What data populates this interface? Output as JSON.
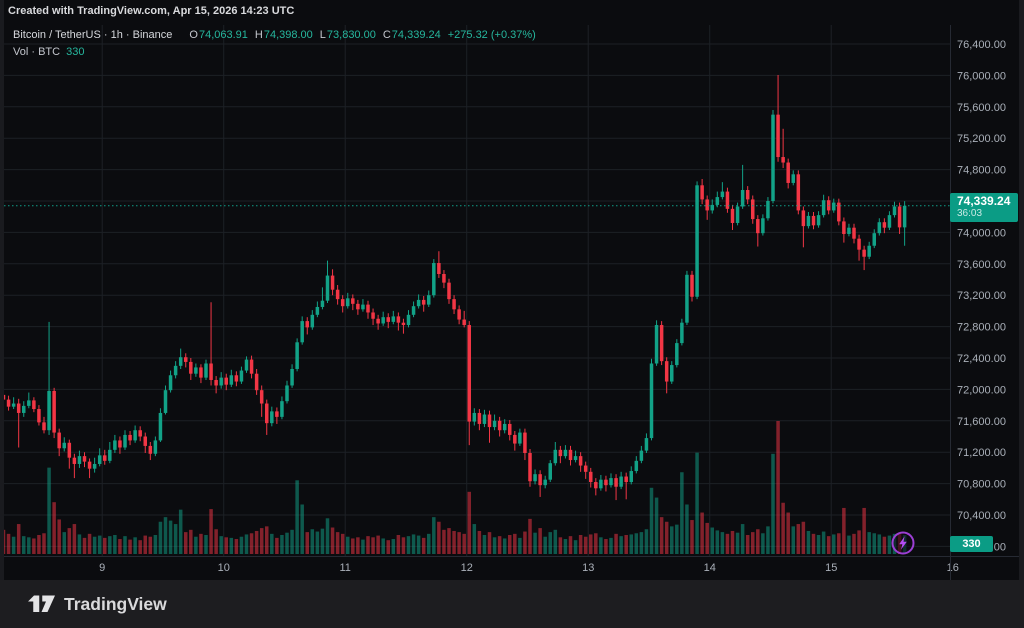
{
  "header": {
    "created_line": "Created with TradingView.com, Apr 15, 2026 14:23 UTC"
  },
  "legend": {
    "symbol_line": "Bitcoin / TetherUS · 1h · Binance",
    "o_label": "O",
    "o_value": "74,063.91",
    "h_label": "H",
    "h_value": "74,398.00",
    "l_label": "L",
    "l_value": "73,830.00",
    "c_label": "C",
    "c_value": "74,339.24",
    "change": "+275.32 (+0.37%)",
    "vol_label": "Vol · BTC",
    "vol_value": "330"
  },
  "price_badge": {
    "price": "74,339.24",
    "countdown": "36:03"
  },
  "volume_badge": {
    "value": "330"
  },
  "footer": {
    "brand": "TradingView"
  },
  "colors": {
    "up": "#12a287",
    "down": "#f23645",
    "accent_teal": "#0b9c85",
    "background": "#0b0c0f",
    "grid": "#1d2026",
    "axis_text": "#aab0b9",
    "legend_value": "#26b79e",
    "boost_purple": "#b44cf5"
  },
  "chart_data": {
    "type": "candlestick",
    "title": "Bitcoin / TetherUS · 1h · Binance",
    "interval": "1h",
    "legend_ohlc": {
      "open": 74063.91,
      "high": 74398.0,
      "low": 73830.0,
      "close": 74339.24,
      "change": 275.32,
      "change_pct": 0.37
    },
    "current_price": {
      "value": 74339.24,
      "countdown": "36:03"
    },
    "price_axis": {
      "max_tick": 76400,
      "min_tick": 70000,
      "tick_step": 400,
      "ticks": [
        76400,
        76000,
        75600,
        75200,
        74800,
        74400,
        74000,
        73600,
        73200,
        72800,
        72400,
        72000,
        71600,
        71200,
        70800,
        70400,
        70000
      ]
    },
    "time_axis": {
      "ticks": [
        {
          "label": "9",
          "index": 20
        },
        {
          "label": "10",
          "index": 44
        },
        {
          "label": "11",
          "index": 68
        },
        {
          "label": "12",
          "index": 92
        },
        {
          "label": "13",
          "index": 116
        },
        {
          "label": "14",
          "index": 140
        },
        {
          "label": "15",
          "index": 164
        },
        {
          "label": "16",
          "index": 188
        }
      ]
    },
    "volume_axis": {
      "max_volume": 2310,
      "last_volume": 330,
      "unit": "BTC"
    },
    "candles_format": [
      "open",
      "high",
      "low",
      "close",
      "volume"
    ],
    "candles": [
      [
        71930,
        71990,
        71820,
        71870,
        420
      ],
      [
        71870,
        71920,
        71730,
        71780,
        350
      ],
      [
        71780,
        71900,
        71750,
        71820,
        300
      ],
      [
        71820,
        71880,
        71260,
        71700,
        520
      ],
      [
        71700,
        71850,
        71650,
        71790,
        310
      ],
      [
        71790,
        71960,
        71760,
        71860,
        290
      ],
      [
        71860,
        71900,
        71710,
        71750,
        270
      ],
      [
        71750,
        71800,
        71540,
        71580,
        330
      ],
      [
        71580,
        71650,
        71440,
        71480,
        360
      ],
      [
        71480,
        72860,
        71420,
        71980,
        1500
      ],
      [
        71980,
        72020,
        71380,
        71450,
        900
      ],
      [
        71450,
        71500,
        71150,
        71250,
        600
      ],
      [
        71250,
        71390,
        71210,
        71320,
        380
      ],
      [
        71320,
        71360,
        70990,
        71130,
        450
      ],
      [
        71130,
        71180,
        70870,
        71050,
        520
      ],
      [
        71050,
        71220,
        71000,
        71150,
        340
      ],
      [
        71150,
        71200,
        71010,
        71080,
        280
      ],
      [
        71080,
        71120,
        70870,
        70990,
        350
      ],
      [
        70990,
        71130,
        70940,
        71050,
        300
      ],
      [
        71050,
        71250,
        71020,
        71160,
        320
      ],
      [
        71160,
        71230,
        71040,
        71090,
        280
      ],
      [
        71090,
        71330,
        71060,
        71230,
        310
      ],
      [
        71230,
        71420,
        71190,
        71350,
        330
      ],
      [
        71350,
        71400,
        71180,
        71260,
        260
      ],
      [
        71260,
        71480,
        71230,
        71420,
        310
      ],
      [
        71420,
        71470,
        71290,
        71350,
        250
      ],
      [
        71350,
        71540,
        71320,
        71480,
        290
      ],
      [
        71480,
        71530,
        71340,
        71400,
        240
      ],
      [
        71400,
        71450,
        71190,
        71280,
        320
      ],
      [
        71280,
        71330,
        71100,
        71180,
        300
      ],
      [
        71180,
        71400,
        71150,
        71350,
        330
      ],
      [
        71350,
        71760,
        71330,
        71700,
        560
      ],
      [
        71700,
        72050,
        71680,
        71990,
        640
      ],
      [
        71990,
        72240,
        71960,
        72180,
        580
      ],
      [
        72180,
        72360,
        72140,
        72300,
        520
      ],
      [
        72300,
        72520,
        72260,
        72410,
        770
      ],
      [
        72410,
        72460,
        72280,
        72350,
        380
      ],
      [
        72350,
        72400,
        72120,
        72200,
        420
      ],
      [
        72200,
        72330,
        72160,
        72280,
        300
      ],
      [
        72280,
        72320,
        72080,
        72150,
        350
      ],
      [
        72150,
        72380,
        72120,
        72330,
        330
      ],
      [
        72330,
        73110,
        72050,
        72120,
        780
      ],
      [
        72120,
        72170,
        71950,
        72050,
        430
      ],
      [
        72050,
        72220,
        72010,
        72150,
        310
      ],
      [
        72150,
        72200,
        71990,
        72060,
        290
      ],
      [
        72060,
        72250,
        72030,
        72180,
        280
      ],
      [
        72180,
        72230,
        72040,
        72100,
        260
      ],
      [
        72100,
        72290,
        72070,
        72240,
        300
      ],
      [
        72240,
        72420,
        72210,
        72380,
        340
      ],
      [
        72380,
        72430,
        72140,
        72200,
        360
      ],
      [
        72200,
        72260,
        71930,
        71990,
        400
      ],
      [
        71990,
        72050,
        71650,
        71820,
        450
      ],
      [
        71820,
        71870,
        71420,
        71570,
        480
      ],
      [
        71570,
        71780,
        71530,
        71720,
        350
      ],
      [
        71720,
        71770,
        71560,
        71650,
        280
      ],
      [
        71650,
        71910,
        71620,
        71850,
        330
      ],
      [
        71850,
        72110,
        71820,
        72050,
        370
      ],
      [
        72050,
        72320,
        72020,
        72260,
        420
      ],
      [
        72260,
        72650,
        72230,
        72600,
        1280
      ],
      [
        72600,
        72930,
        72570,
        72870,
        860
      ],
      [
        72870,
        72920,
        72700,
        72790,
        380
      ],
      [
        72790,
        73010,
        72760,
        72950,
        430
      ],
      [
        72950,
        73120,
        72920,
        73050,
        390
      ],
      [
        73050,
        73300,
        73020,
        73130,
        440
      ],
      [
        73130,
        73640,
        73100,
        73450,
        620
      ],
      [
        73450,
        73530,
        73200,
        73270,
        460
      ],
      [
        73270,
        73330,
        73080,
        73150,
        380
      ],
      [
        73150,
        73200,
        72980,
        73060,
        350
      ],
      [
        73060,
        73230,
        73030,
        73160,
        300
      ],
      [
        73160,
        73210,
        73010,
        73090,
        270
      ],
      [
        73090,
        73140,
        72950,
        73020,
        290
      ],
      [
        73020,
        73150,
        72990,
        73080,
        250
      ],
      [
        73080,
        73130,
        72900,
        72980,
        310
      ],
      [
        72980,
        73030,
        72820,
        72900,
        290
      ],
      [
        72900,
        72950,
        72760,
        72840,
        320
      ],
      [
        72840,
        72990,
        72810,
        72920,
        270
      ],
      [
        72920,
        72970,
        72780,
        72860,
        240
      ],
      [
        72860,
        73000,
        72830,
        72930,
        260
      ],
      [
        72930,
        72980,
        72750,
        72850,
        330
      ],
      [
        72850,
        72900,
        72710,
        72820,
        290
      ],
      [
        72820,
        73010,
        72790,
        72950,
        310
      ],
      [
        72950,
        73120,
        72920,
        73060,
        340
      ],
      [
        73060,
        73210,
        73030,
        73140,
        320
      ],
      [
        73140,
        73190,
        72990,
        73080,
        280
      ],
      [
        73080,
        73260,
        73050,
        73200,
        350
      ],
      [
        73200,
        73660,
        73170,
        73610,
        640
      ],
      [
        73610,
        73760,
        73420,
        73470,
        560
      ],
      [
        73470,
        73520,
        73290,
        73360,
        420
      ],
      [
        73360,
        73410,
        73090,
        73150,
        450
      ],
      [
        73150,
        73200,
        72960,
        73020,
        400
      ],
      [
        73020,
        73070,
        72830,
        72890,
        380
      ],
      [
        72890,
        73000,
        72790,
        72820,
        350
      ],
      [
        72820,
        72870,
        71290,
        71590,
        1080
      ],
      [
        71590,
        71760,
        71540,
        71700,
        520
      ],
      [
        71700,
        71750,
        71480,
        71560,
        400
      ],
      [
        71560,
        71740,
        71520,
        71680,
        330
      ],
      [
        71680,
        71730,
        71320,
        71520,
        380
      ],
      [
        71520,
        71680,
        71480,
        71600,
        290
      ],
      [
        71600,
        71650,
        71400,
        71480,
        310
      ],
      [
        71480,
        71620,
        71440,
        71560,
        270
      ],
      [
        71560,
        71610,
        71350,
        71420,
        330
      ],
      [
        71420,
        71470,
        71220,
        71310,
        350
      ],
      [
        71310,
        71500,
        71280,
        71450,
        280
      ],
      [
        71450,
        71500,
        71100,
        71190,
        390
      ],
      [
        71190,
        71240,
        70760,
        70830,
        610
      ],
      [
        70830,
        70980,
        70790,
        70920,
        370
      ],
      [
        70920,
        70970,
        70630,
        70780,
        450
      ],
      [
        70780,
        70900,
        70740,
        70850,
        300
      ],
      [
        70850,
        71100,
        70820,
        71060,
        380
      ],
      [
        71060,
        71330,
        71030,
        71230,
        420
      ],
      [
        71230,
        71280,
        71060,
        71150,
        290
      ],
      [
        71150,
        71290,
        71120,
        71230,
        260
      ],
      [
        71230,
        71280,
        71030,
        71100,
        310
      ],
      [
        71100,
        71220,
        71070,
        71150,
        240
      ],
      [
        71150,
        71200,
        70950,
        71030,
        330
      ],
      [
        71030,
        71080,
        70860,
        70950,
        300
      ],
      [
        70950,
        71000,
        70750,
        70820,
        340
      ],
      [
        70820,
        70870,
        70650,
        70740,
        360
      ],
      [
        70740,
        70910,
        70710,
        70850,
        290
      ],
      [
        70850,
        70900,
        70700,
        70780,
        260
      ],
      [
        70780,
        70930,
        70750,
        70870,
        280
      ],
      [
        70870,
        70920,
        70590,
        70760,
        350
      ],
      [
        70760,
        70950,
        70730,
        70890,
        310
      ],
      [
        70890,
        70940,
        70600,
        70820,
        330
      ],
      [
        70820,
        71020,
        70790,
        70960,
        340
      ],
      [
        70960,
        71150,
        70930,
        71090,
        360
      ],
      [
        71090,
        71280,
        71060,
        71220,
        380
      ],
      [
        71220,
        71440,
        71190,
        71380,
        430
      ],
      [
        71380,
        72390,
        71350,
        72330,
        1150
      ],
      [
        72330,
        72880,
        72300,
        72820,
        980
      ],
      [
        72820,
        72870,
        72310,
        72360,
        640
      ],
      [
        72360,
        72410,
        71950,
        72100,
        560
      ],
      [
        72100,
        72360,
        72070,
        72310,
        480
      ],
      [
        72310,
        72640,
        72280,
        72590,
        510
      ],
      [
        72590,
        72900,
        72560,
        72850,
        1420
      ],
      [
        72850,
        73510,
        72820,
        73460,
        860
      ],
      [
        73460,
        73510,
        73120,
        73180,
        590
      ],
      [
        73180,
        74650,
        73150,
        74600,
        1760
      ],
      [
        74600,
        74680,
        74360,
        74420,
        720
      ],
      [
        74420,
        74470,
        74160,
        74280,
        540
      ],
      [
        74280,
        74420,
        74240,
        74350,
        460
      ],
      [
        74350,
        74520,
        74320,
        74450,
        410
      ],
      [
        74450,
        74640,
        74420,
        74520,
        380
      ],
      [
        74520,
        74570,
        74250,
        74300,
        350
      ],
      [
        74300,
        74350,
        74030,
        74120,
        400
      ],
      [
        74120,
        74380,
        74090,
        74330,
        370
      ],
      [
        74330,
        74860,
        74300,
        74540,
        520
      ],
      [
        74540,
        74590,
        74360,
        74420,
        330
      ],
      [
        74420,
        74470,
        74110,
        74170,
        380
      ],
      [
        74170,
        74220,
        73820,
        73990,
        430
      ],
      [
        73990,
        74230,
        73960,
        74180,
        360
      ],
      [
        74180,
        74450,
        74150,
        74400,
        480
      ],
      [
        74400,
        75560,
        74370,
        75500,
        1740
      ],
      [
        75500,
        76005,
        74900,
        74960,
        2310
      ],
      [
        74960,
        75320,
        74820,
        74890,
        890
      ],
      [
        74890,
        74940,
        74560,
        74630,
        720
      ],
      [
        74630,
        74790,
        74600,
        74740,
        480
      ],
      [
        74740,
        74790,
        74230,
        74280,
        520
      ],
      [
        74280,
        74330,
        73810,
        74080,
        560
      ],
      [
        74080,
        74260,
        74050,
        74210,
        400
      ],
      [
        74210,
        74260,
        74040,
        74090,
        350
      ],
      [
        74090,
        74270,
        74060,
        74220,
        330
      ],
      [
        74220,
        74480,
        74190,
        74410,
        390
      ],
      [
        74410,
        74460,
        74230,
        74280,
        310
      ],
      [
        74280,
        74430,
        74250,
        74380,
        340
      ],
      [
        74380,
        74430,
        74090,
        74140,
        360
      ],
      [
        74140,
        74190,
        73870,
        73980,
        800
      ],
      [
        73980,
        74110,
        73950,
        74060,
        320
      ],
      [
        74060,
        74110,
        73860,
        73920,
        350
      ],
      [
        73920,
        73970,
        73640,
        73780,
        410
      ],
      [
        73780,
        73830,
        73520,
        73690,
        800
      ],
      [
        73690,
        73880,
        73660,
        73830,
        380
      ],
      [
        73830,
        74040,
        73800,
        73990,
        360
      ],
      [
        73990,
        74180,
        73960,
        74130,
        340
      ],
      [
        74130,
        74180,
        73990,
        74060,
        300
      ],
      [
        74060,
        74270,
        74030,
        74220,
        320
      ],
      [
        74220,
        74390,
        74190,
        74330,
        350
      ],
      [
        74330,
        74380,
        73980,
        74064,
        360
      ],
      [
        74063.91,
        74398,
        73830,
        74339.24,
        330
      ]
    ]
  }
}
